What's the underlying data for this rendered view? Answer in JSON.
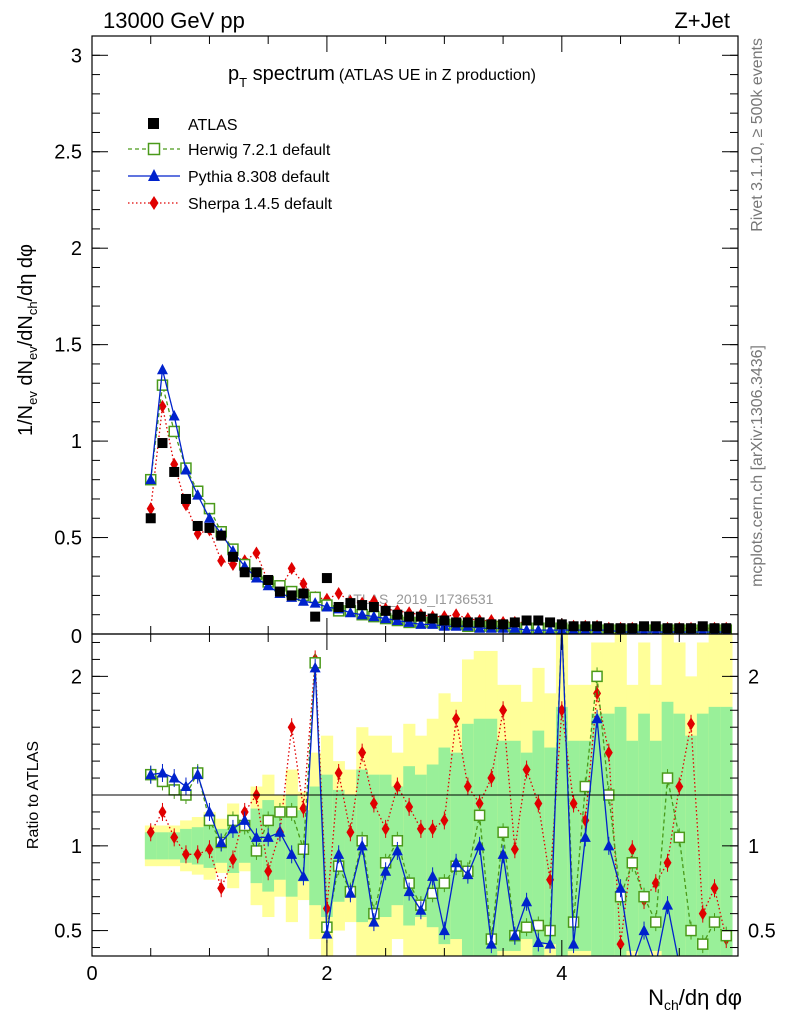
{
  "header": {
    "left": "13000 GeV pp",
    "right": "Z+Jet"
  },
  "side_labels": {
    "rivet": "Rivet 3.1.10, ≥ 500k events",
    "mcplots": "mcplots.cern.ch [arXiv:1306.3436]"
  },
  "plot_title": {
    "main": "p",
    "sub": "T",
    "rest": " spectrum",
    "paren": "(ATLAS UE in Z production)"
  },
  "watermark": "ATLAS_2019_I1736531",
  "legend": [
    {
      "key": "data",
      "label": "ATLAS"
    },
    {
      "key": "herwig",
      "label": "Herwig 7.2.1 default"
    },
    {
      "key": "pythia",
      "label": "Pythia 8.308 default"
    },
    {
      "key": "sherpa",
      "label": "Sherpa 1.4.5 default"
    }
  ],
  "colors": {
    "data": "#000000",
    "herwig": "#4a9a1a",
    "pythia": "#0022cc",
    "sherpa": "#e00000",
    "band_yellow": "#ffff99",
    "band_green": "#99f099"
  },
  "chart_data": {
    "type": "line",
    "xlabel": "N_ch/dη dφ",
    "ylabel_main": "1/N_ev dN_ev/dN_ch/dη dφ",
    "ylabel_ratio": "Ratio to ATLAS",
    "xlim": [
      0,
      5.5
    ],
    "ylim_main": [
      0,
      3.1
    ],
    "ylim_ratio": [
      0.35,
      2.25
    ],
    "x_ticks": [
      0,
      2,
      4
    ],
    "y_ticks_main": [
      0.5,
      1,
      1.5,
      2,
      2.5,
      3
    ],
    "y_ticks_main_labels": [
      "0.5",
      "1",
      "1.5",
      "2",
      "2.5",
      "3"
    ],
    "y_zero_label": "0",
    "y_ticks_ratio": [
      0.5,
      1,
      2
    ],
    "y_ticks_ratio_labels": [
      "0.5",
      "1",
      "2"
    ],
    "x": [
      0.5,
      0.6,
      0.7,
      0.8,
      0.9,
      1.0,
      1.1,
      1.2,
      1.3,
      1.4,
      1.5,
      1.6,
      1.7,
      1.8,
      1.9,
      2.0,
      2.1,
      2.2,
      2.3,
      2.4,
      2.5,
      2.6,
      2.7,
      2.8,
      2.9,
      3.0,
      3.1,
      3.2,
      3.3,
      3.4,
      3.5,
      3.6,
      3.7,
      3.8,
      3.9,
      4.0,
      4.1,
      4.2,
      4.3,
      4.4,
      4.5,
      4.6,
      4.7,
      4.8,
      4.9,
      5.0,
      5.1,
      5.2,
      5.3,
      5.4
    ],
    "series": [
      {
        "name": "ATLAS",
        "key": "data",
        "values": [
          0.6,
          0.99,
          0.84,
          0.7,
          0.56,
          0.55,
          0.51,
          0.4,
          0.32,
          0.32,
          0.28,
          0.22,
          0.2,
          0.21,
          0.09,
          0.29,
          0.14,
          0.16,
          0.15,
          0.14,
          0.12,
          0.1,
          0.09,
          0.09,
          0.08,
          0.07,
          0.06,
          0.06,
          0.06,
          0.05,
          0.05,
          0.06,
          0.07,
          0.07,
          0.06,
          0.05,
          0.04,
          0.04,
          0.04,
          0.03,
          0.03,
          0.03,
          0.04,
          0.04,
          0.03,
          0.03,
          0.03,
          0.04,
          0.03,
          0.03
        ]
      },
      {
        "name": "Herwig 7.2.1 default",
        "key": "herwig",
        "values": [
          0.8,
          1.29,
          1.05,
          0.86,
          0.74,
          0.65,
          0.53,
          0.44,
          0.36,
          0.31,
          0.27,
          0.25,
          0.22,
          0.2,
          0.19,
          0.15,
          0.12,
          0.12,
          0.1,
          0.09,
          0.08,
          0.07,
          0.06,
          0.06,
          0.06,
          0.05,
          0.05,
          0.04,
          0.04,
          0.04,
          0.04,
          0.03,
          0.03,
          0.03,
          0.03,
          0.03,
          0.02,
          0.02,
          0.02,
          0.02,
          0.02,
          0.02,
          0.02,
          0.02,
          0.02,
          0.02,
          0.02,
          0.02,
          0.02,
          0.02
        ]
      },
      {
        "name": "Pythia 8.308 default",
        "key": "pythia",
        "values": [
          0.8,
          1.37,
          1.13,
          0.85,
          0.72,
          0.6,
          0.52,
          0.43,
          0.35,
          0.29,
          0.25,
          0.21,
          0.19,
          0.17,
          0.16,
          0.14,
          0.13,
          0.11,
          0.1,
          0.09,
          0.08,
          0.07,
          0.06,
          0.05,
          0.05,
          0.04,
          0.04,
          0.04,
          0.03,
          0.03,
          0.03,
          0.03,
          0.02,
          0.02,
          0.02,
          0.02,
          0.02,
          0.02,
          0.02,
          0.02,
          0.01,
          0.01,
          0.01,
          0.01,
          0.01,
          0.01,
          0.01,
          0.01,
          0.01,
          0.01
        ]
      },
      {
        "name": "Sherpa 1.4.5 default",
        "key": "sherpa",
        "values": [
          0.65,
          1.18,
          0.88,
          0.67,
          0.52,
          0.54,
          0.38,
          0.36,
          0.38,
          0.42,
          0.27,
          0.23,
          0.34,
          0.26,
          0.19,
          0.18,
          0.21,
          0.17,
          0.16,
          0.17,
          0.13,
          0.12,
          0.11,
          0.1,
          0.09,
          0.09,
          0.1,
          0.08,
          0.07,
          0.07,
          0.06,
          0.06,
          0.06,
          0.05,
          0.05,
          0.05,
          0.04,
          0.04,
          0.04,
          0.03,
          0.03,
          0.03,
          0.03,
          0.03,
          0.03,
          0.03,
          0.03,
          0.03,
          0.03,
          0.03
        ]
      }
    ],
    "ratios": [
      {
        "key": "herwig",
        "values": [
          1.42,
          1.38,
          1.33,
          1.3,
          1.43,
          1.15,
          1.02,
          1.15,
          1.12,
          0.97,
          1.15,
          1.2,
          1.2,
          0.98,
          2.08,
          0.52,
          0.88,
          0.73,
          1.03,
          0.6,
          0.9,
          1.03,
          0.78,
          0.65,
          0.72,
          0.78,
          0.88,
          0.85,
          1.18,
          0.45,
          1.08,
          0.47,
          0.52,
          0.53,
          0.5,
          2.3,
          0.55,
          1.35,
          2.0,
          1.3,
          0.7,
          0.9,
          0.7,
          0.55,
          1.4,
          1.05,
          0.5,
          0.42,
          0.55,
          0.47
        ]
      },
      {
        "key": "pythia",
        "values": [
          1.42,
          1.43,
          1.4,
          1.35,
          1.42,
          1.2,
          1.02,
          1.1,
          1.15,
          1.05,
          1.05,
          1.08,
          0.95,
          0.82,
          2.05,
          0.48,
          0.95,
          0.72,
          1.0,
          0.55,
          0.85,
          0.97,
          0.73,
          0.62,
          0.82,
          0.5,
          0.9,
          0.83,
          1.0,
          0.42,
          0.95,
          0.47,
          0.67,
          0.43,
          0.42,
          2.3,
          0.42,
          1.05,
          1.75,
          1.0,
          0.75,
          0.3,
          0.5,
          0.3,
          0.65,
          0.3,
          0.3,
          0.3,
          0.3,
          0.3
        ]
      },
      {
        "key": "sherpa",
        "values": [
          1.08,
          1.2,
          1.05,
          0.95,
          0.95,
          0.98,
          0.75,
          0.92,
          1.2,
          1.3,
          0.85,
          1.08,
          1.7,
          1.22,
          2.1,
          0.63,
          1.43,
          1.08,
          1.55,
          1.25,
          1.1,
          1.35,
          1.23,
          1.1,
          1.1,
          1.15,
          1.75,
          1.35,
          1.25,
          1.4,
          1.8,
          0.98,
          1.45,
          1.25,
          0.8,
          1.8,
          1.25,
          1.15,
          1.9,
          1.55,
          0.42,
          0.98,
          0.68,
          0.78,
          0.9,
          1.35,
          1.72,
          0.6,
          0.75,
          0.45
        ]
      }
    ],
    "band_yellow_halfwidth": [
      0.12,
      0.12,
      0.12,
      0.15,
      0.17,
      0.2,
      0.16,
      0.25,
      0.15,
      0.35,
      0.42,
      0.3,
      0.45,
      0.32,
      0.55,
      0.65,
      0.5,
      0.45,
      0.7,
      0.65,
      0.65,
      0.55,
      0.72,
      0.65,
      0.75,
      0.9,
      0.85,
      1.1,
      1.15,
      1.15,
      0.95,
      0.95,
      0.85,
      1.05,
      0.9,
      1.25,
      0.95,
      0.95,
      1.2,
      1.2,
      1.25,
      0.95,
      1.2,
      0.95,
      1.3,
      1.2,
      1.0,
      1.2,
      1.25,
      1.25
    ],
    "band_green_halfwidth": [
      0.08,
      0.08,
      0.08,
      0.1,
      0.11,
      0.13,
      0.1,
      0.16,
      0.1,
      0.22,
      0.27,
      0.2,
      0.3,
      0.21,
      0.35,
      0.42,
      0.33,
      0.3,
      0.45,
      0.42,
      0.42,
      0.35,
      0.47,
      0.42,
      0.48,
      0.58,
      0.55,
      0.72,
      0.75,
      0.75,
      0.62,
      0.62,
      0.55,
      0.68,
      0.58,
      0.82,
      0.62,
      0.62,
      0.78,
      0.78,
      0.82,
      0.62,
      0.78,
      0.62,
      0.85,
      0.78,
      0.65,
      0.78,
      0.82,
      0.82
    ]
  }
}
